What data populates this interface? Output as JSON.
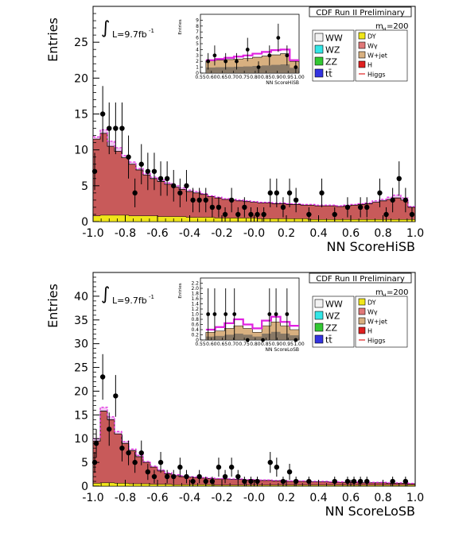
{
  "common": {
    "experiment": "CDF Run II Preliminary",
    "mass": "m",
    "mass_sub": "H",
    "mass_val": "=200",
    "lumi": "L=9.7fb",
    "lumi_sup": "-1",
    "integral": "∫",
    "legend": [
      {
        "label": "WW",
        "color": "#f2f2f2"
      },
      {
        "label": "WZ",
        "color": "#33e6e6"
      },
      {
        "label": "ZZ",
        "color": "#33c833"
      },
      {
        "label": "tt̄",
        "color": "#3333e0"
      },
      {
        "label": "DY",
        "color": "#f0e61a"
      },
      {
        "label": "Wγ",
        "color": "#e07878"
      },
      {
        "label": "W+jet",
        "color": "#d8b080"
      },
      {
        "label": "H",
        "color": "#e02020"
      },
      {
        "label": "Higgs",
        "color": "#e02020",
        "line": true
      }
    ]
  },
  "chart_data": [
    {
      "type": "bar",
      "ylabel": "Entries",
      "xlabel": "NN ScoreHiSB",
      "xlim": [
        -1.0,
        1.0
      ],
      "ylim": [
        0,
        30
      ],
      "xticks": [
        "-1.0",
        "-0.8",
        "-0.6",
        "-0.4",
        "-0.2",
        "-0.0",
        "0.2",
        "0.4",
        "0.6",
        "0.8",
        "1.0"
      ],
      "yticks": [
        "0",
        "5",
        "10",
        "15",
        "20",
        "25"
      ],
      "data_points": [
        {
          "x": -0.99,
          "y": 7,
          "err": 2.6
        },
        {
          "x": -0.94,
          "y": 15,
          "err": 3.9
        },
        {
          "x": -0.9,
          "y": 13,
          "err": 3.6
        },
        {
          "x": -0.86,
          "y": 13,
          "err": 3.6
        },
        {
          "x": -0.82,
          "y": 13,
          "err": 3.6
        },
        {
          "x": -0.78,
          "y": 9,
          "err": 3.0
        },
        {
          "x": -0.74,
          "y": 4,
          "err": 2.0
        },
        {
          "x": -0.7,
          "y": 8,
          "err": 2.8
        },
        {
          "x": -0.66,
          "y": 7,
          "err": 2.6
        },
        {
          "x": -0.62,
          "y": 7,
          "err": 2.6
        },
        {
          "x": -0.58,
          "y": 6,
          "err": 2.4
        },
        {
          "x": -0.54,
          "y": 6,
          "err": 2.4
        },
        {
          "x": -0.5,
          "y": 5,
          "err": 2.2
        },
        {
          "x": -0.46,
          "y": 4,
          "err": 2.0
        },
        {
          "x": -0.42,
          "y": 5,
          "err": 2.2
        },
        {
          "x": -0.38,
          "y": 3,
          "err": 1.7
        },
        {
          "x": -0.34,
          "y": 3,
          "err": 1.7
        },
        {
          "x": -0.3,
          "y": 3,
          "err": 1.7
        },
        {
          "x": -0.26,
          "y": 2,
          "err": 1.4
        },
        {
          "x": -0.22,
          "y": 2,
          "err": 1.4
        },
        {
          "x": -0.18,
          "y": 1,
          "err": 1.0
        },
        {
          "x": -0.14,
          "y": 3,
          "err": 1.7
        },
        {
          "x": -0.1,
          "y": 1,
          "err": 1.0
        },
        {
          "x": -0.06,
          "y": 2,
          "err": 1.4
        },
        {
          "x": -0.02,
          "y": 1,
          "err": 1.0
        },
        {
          "x": 0.02,
          "y": 1,
          "err": 1.0
        },
        {
          "x": 0.06,
          "y": 1,
          "err": 1.0
        },
        {
          "x": 0.1,
          "y": 4,
          "err": 2.0
        },
        {
          "x": 0.14,
          "y": 4,
          "err": 2.0
        },
        {
          "x": 0.18,
          "y": 2,
          "err": 1.4
        },
        {
          "x": 0.22,
          "y": 4,
          "err": 2.0
        },
        {
          "x": 0.26,
          "y": 3,
          "err": 1.7
        },
        {
          "x": 0.34,
          "y": 1,
          "err": 1.0
        },
        {
          "x": 0.42,
          "y": 4,
          "err": 2.0
        },
        {
          "x": 0.5,
          "y": 1,
          "err": 1.0
        },
        {
          "x": 0.58,
          "y": 2,
          "err": 1.4
        },
        {
          "x": 0.66,
          "y": 2,
          "err": 1.4
        },
        {
          "x": 0.7,
          "y": 2,
          "err": 1.4
        },
        {
          "x": 0.78,
          "y": 4,
          "err": 2.0
        },
        {
          "x": 0.82,
          "y": 1,
          "err": 1.0
        },
        {
          "x": 0.86,
          "y": 3,
          "err": 1.7
        },
        {
          "x": 0.9,
          "y": 6,
          "err": 2.4
        },
        {
          "x": 0.94,
          "y": 3,
          "err": 1.7
        },
        {
          "x": 0.98,
          "y": 1,
          "err": 1.0
        }
      ],
      "background_total": [
        11.5,
        12.3,
        10.5,
        9.8,
        8.9,
        8.0,
        7.2,
        6.5,
        6.0,
        5.6,
        5.2,
        4.8,
        4.5,
        4.2,
        4.0,
        3.8,
        3.5,
        3.3,
        3.1,
        3.0,
        2.9,
        2.8,
        2.7,
        2.6,
        2.6,
        2.5,
        2.5,
        2.4,
        2.4,
        2.3,
        2.3,
        2.2,
        2.2,
        2.2,
        2.1,
        2.2,
        2.3,
        2.4,
        2.5,
        2.7,
        2.9,
        3.1,
        3.3,
        3.0,
        2.0
      ],
      "dy_component": [
        0.8,
        0.9,
        0.9,
        0.9,
        0.9,
        0.8,
        0.8,
        0.8,
        0.8,
        0.7,
        0.7,
        0.7,
        0.7,
        0.6,
        0.6,
        0.6,
        0.6,
        0.5,
        0.5,
        0.5,
        0.5,
        0.5,
        0.5,
        0.4,
        0.4,
        0.4,
        0.4,
        0.4,
        0.4,
        0.4,
        0.3,
        0.3,
        0.3,
        0.3,
        0.3,
        0.3,
        0.3,
        0.3,
        0.3,
        0.3,
        0.3,
        0.3,
        0.3,
        0.3,
        0.3
      ],
      "signal_total": [
        11.8,
        12.8,
        11.2,
        10.3,
        9.2,
        8.3,
        7.4,
        6.7,
        6.2,
        5.8,
        5.4,
        5.0,
        4.7,
        4.4,
        4.2,
        3.9,
        3.6,
        3.4,
        3.2,
        3.1,
        3.0,
        2.9,
        2.8,
        2.7,
        2.7,
        2.6,
        2.6,
        2.5,
        2.5,
        2.4,
        2.4,
        2.3,
        2.3,
        2.3,
        2.2,
        2.3,
        2.4,
        2.5,
        2.6,
        2.9,
        3.1,
        3.4,
        3.7,
        3.3,
        2.1
      ],
      "inset": {
        "xlabel": "NN ScoreHiSB",
        "ylabel": "Entries",
        "xlim": [
          0.55,
          1.0
        ],
        "ylim": [
          0,
          10
        ],
        "xticks": [
          "0.55",
          "0.60",
          "0.65",
          "0.70",
          "0.75",
          "0.80",
          "0.85",
          "0.90",
          "0.95",
          "1.00"
        ],
        "yticks": [
          "0",
          "1",
          "2",
          "3",
          "4",
          "5",
          "6",
          "7",
          "8",
          "9"
        ],
        "points": [
          {
            "x": 0.585,
            "y": 2,
            "err": 1.4
          },
          {
            "x": 0.615,
            "y": 3,
            "err": 1.7
          },
          {
            "x": 0.665,
            "y": 2,
            "err": 1.4
          },
          {
            "x": 0.715,
            "y": 2,
            "err": 1.4
          },
          {
            "x": 0.765,
            "y": 4,
            "err": 2.0
          },
          {
            "x": 0.815,
            "y": 1,
            "err": 1.0
          },
          {
            "x": 0.865,
            "y": 3,
            "err": 1.7
          },
          {
            "x": 0.905,
            "y": 6,
            "err": 2.4
          },
          {
            "x": 0.945,
            "y": 3,
            "err": 1.7
          },
          {
            "x": 0.985,
            "y": 1,
            "err": 1.0
          }
        ],
        "background": [
          2.1,
          2.2,
          2.3,
          2.4,
          2.5,
          2.7,
          2.9,
          3.1,
          3.3,
          2.0
        ],
        "signal": [
          2.2,
          2.4,
          2.6,
          2.8,
          3.0,
          3.3,
          3.6,
          3.9,
          4.0,
          2.2
        ]
      }
    },
    {
      "type": "bar",
      "ylabel": "Entries",
      "xlabel": "NN ScoreLoSB",
      "xlim": [
        -1.0,
        1.0
      ],
      "ylim": [
        0,
        45
      ],
      "xticks": [
        "-1.0",
        "-0.8",
        "-0.6",
        "-0.4",
        "-0.2",
        "-0.0",
        "0.2",
        "0.4",
        "0.6",
        "0.8",
        "1.0"
      ],
      "yticks": [
        "0",
        "5",
        "10",
        "15",
        "20",
        "25",
        "30",
        "35",
        "40"
      ],
      "data_points": [
        {
          "x": -0.99,
          "y": 5,
          "err": 2.2
        },
        {
          "x": -0.98,
          "y": 9,
          "err": 3.0
        },
        {
          "x": -0.94,
          "y": 23,
          "err": 4.8
        },
        {
          "x": -0.9,
          "y": 12,
          "err": 3.5
        },
        {
          "x": -0.86,
          "y": 19,
          "err": 4.4
        },
        {
          "x": -0.82,
          "y": 8,
          "err": 2.8
        },
        {
          "x": -0.78,
          "y": 7,
          "err": 2.6
        },
        {
          "x": -0.74,
          "y": 5,
          "err": 2.2
        },
        {
          "x": -0.7,
          "y": 7,
          "err": 2.6
        },
        {
          "x": -0.66,
          "y": 3,
          "err": 1.7
        },
        {
          "x": -0.62,
          "y": 2,
          "err": 1.4
        },
        {
          "x": -0.58,
          "y": 5,
          "err": 2.2
        },
        {
          "x": -0.54,
          "y": 2,
          "err": 1.4
        },
        {
          "x": -0.5,
          "y": 2,
          "err": 1.4
        },
        {
          "x": -0.46,
          "y": 4,
          "err": 2.0
        },
        {
          "x": -0.42,
          "y": 2,
          "err": 1.4
        },
        {
          "x": -0.38,
          "y": 1,
          "err": 1.0
        },
        {
          "x": -0.34,
          "y": 2,
          "err": 1.4
        },
        {
          "x": -0.3,
          "y": 1,
          "err": 1.0
        },
        {
          "x": -0.26,
          "y": 1,
          "err": 1.0
        },
        {
          "x": -0.22,
          "y": 4,
          "err": 2.0
        },
        {
          "x": -0.18,
          "y": 2,
          "err": 1.4
        },
        {
          "x": -0.14,
          "y": 4,
          "err": 2.0
        },
        {
          "x": -0.1,
          "y": 2,
          "err": 1.4
        },
        {
          "x": -0.06,
          "y": 1,
          "err": 1.0
        },
        {
          "x": -0.02,
          "y": 1,
          "err": 1.0
        },
        {
          "x": 0.02,
          "y": 1,
          "err": 1.0
        },
        {
          "x": 0.1,
          "y": 5,
          "err": 2.2
        },
        {
          "x": 0.14,
          "y": 4,
          "err": 2.0
        },
        {
          "x": 0.18,
          "y": 1,
          "err": 1.0
        },
        {
          "x": 0.22,
          "y": 3,
          "err": 1.7
        },
        {
          "x": 0.26,
          "y": 1,
          "err": 1.0
        },
        {
          "x": 0.34,
          "y": 1,
          "err": 1.0
        },
        {
          "x": 0.5,
          "y": 1,
          "err": 1.0
        },
        {
          "x": 0.58,
          "y": 1,
          "err": 1.0
        },
        {
          "x": 0.62,
          "y": 1,
          "err": 1.0
        },
        {
          "x": 0.66,
          "y": 1,
          "err": 1.0
        },
        {
          "x": 0.7,
          "y": 1,
          "err": 1.0
        },
        {
          "x": 0.86,
          "y": 1,
          "err": 1.0
        },
        {
          "x": 0.94,
          "y": 1,
          "err": 1.0
        }
      ],
      "background_total": [
        9.5,
        15.8,
        14.0,
        11.0,
        9.0,
        7.5,
        6.2,
        5.0,
        4.0,
        3.2,
        2.6,
        2.2,
        2.0,
        1.9,
        1.8,
        1.7,
        1.6,
        1.5,
        1.5,
        1.4,
        1.4,
        1.3,
        1.3,
        1.2,
        1.2,
        1.1,
        1.1,
        1.0,
        1.0,
        1.0,
        0.9,
        0.9,
        0.9,
        0.8,
        0.8,
        0.8,
        0.8,
        0.7,
        0.7,
        0.7,
        0.7,
        0.6,
        0.6,
        0.6,
        0.5
      ],
      "dy_component": [
        0.6,
        0.7,
        0.7,
        0.6,
        0.6,
        0.5,
        0.5,
        0.5,
        0.4,
        0.4,
        0.4,
        0.3,
        0.3,
        0.3,
        0.3,
        0.3,
        0.3,
        0.2,
        0.2,
        0.2,
        0.2,
        0.2,
        0.2,
        0.2,
        0.2,
        0.2,
        0.2,
        0.2,
        0.2,
        0.2,
        0.2,
        0.2,
        0.2,
        0.2,
        0.2,
        0.2,
        0.2,
        0.2,
        0.2,
        0.2,
        0.2,
        0.2,
        0.2,
        0.2,
        0.2
      ],
      "signal_total": [
        10.0,
        16.6,
        14.6,
        11.5,
        9.4,
        7.8,
        6.5,
        5.2,
        4.2,
        3.4,
        2.8,
        2.4,
        2.2,
        2.0,
        1.9,
        1.8,
        1.7,
        1.6,
        1.6,
        1.5,
        1.5,
        1.4,
        1.4,
        1.3,
        1.3,
        1.2,
        1.2,
        1.1,
        1.1,
        1.1,
        1.0,
        1.0,
        1.0,
        0.9,
        0.9,
        0.9,
        0.9,
        0.8,
        0.8,
        0.8,
        0.8,
        0.7,
        0.7,
        0.7,
        0.6
      ],
      "inset": {
        "xlabel": "NN ScoreLoSB",
        "ylabel": "Entries",
        "xlim": [
          0.55,
          1.0
        ],
        "ylim": [
          0,
          2.4
        ],
        "xticks": [
          "0.55",
          "0.60",
          "0.65",
          "0.70",
          "0.75",
          "0.80",
          "0.85",
          "0.90",
          "0.95",
          "1.00"
        ],
        "yticks": [
          "0",
          "0.2",
          "0.4",
          "0.6",
          "0.8",
          "1.0",
          "1.2",
          "1.4",
          "1.6",
          "1.8",
          "2.0",
          "2.2"
        ],
        "points": [
          {
            "x": 0.585,
            "y": 1,
            "err": 1.0
          },
          {
            "x": 0.615,
            "y": 1,
            "err": 1.0
          },
          {
            "x": 0.665,
            "y": 1,
            "err": 1.0
          },
          {
            "x": 0.705,
            "y": 1,
            "err": 1.0
          },
          {
            "x": 0.765,
            "y": 0,
            "err": 0.0
          },
          {
            "x": 0.835,
            "y": 0,
            "err": 0.0
          },
          {
            "x": 0.865,
            "y": 1,
            "err": 1.0
          },
          {
            "x": 0.895,
            "y": 1,
            "err": 1.0
          },
          {
            "x": 0.945,
            "y": 1,
            "err": 1.0
          },
          {
            "x": 0.985,
            "y": 0,
            "err": 0.0
          }
        ],
        "background": [
          0.3,
          0.35,
          0.45,
          0.55,
          0.45,
          0.3,
          0.55,
          0.7,
          0.55,
          0.4
        ],
        "signal": [
          0.4,
          0.5,
          0.65,
          0.8,
          0.6,
          0.45,
          0.75,
          0.9,
          0.7,
          0.55
        ]
      }
    }
  ]
}
